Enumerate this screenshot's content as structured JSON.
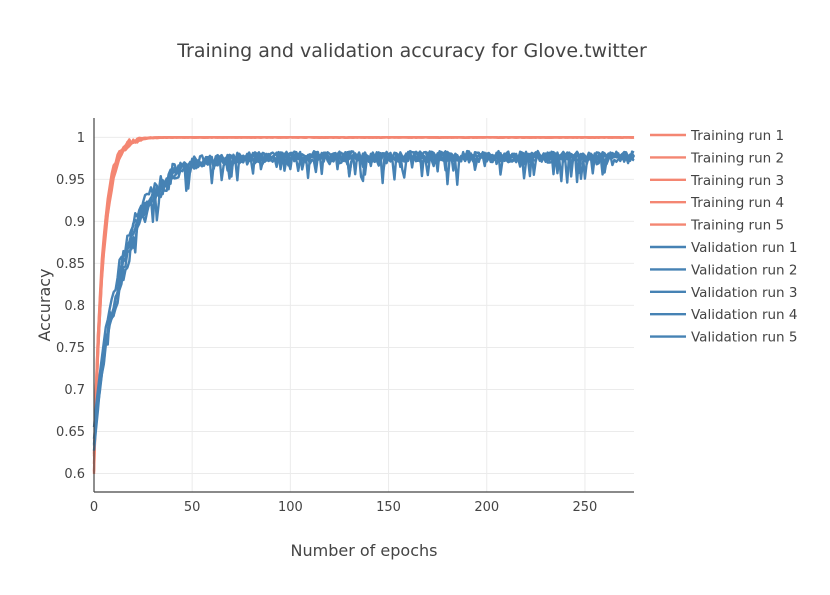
{
  "chart_data": {
    "type": "line",
    "title": "Training and validation accuracy for Glove.twitter",
    "xlabel": "Number of epochs",
    "ylabel": "Accuracy",
    "xlim": [
      0,
      275
    ],
    "ylim": [
      0.578,
      1.023
    ],
    "x_ticks": [
      0,
      50,
      100,
      150,
      200,
      250
    ],
    "y_ticks": [
      0.6,
      0.65,
      0.7,
      0.75,
      0.8,
      0.85,
      0.9,
      0.95,
      1
    ],
    "y_tick_labels": [
      "0.6",
      "0.65",
      "0.7",
      "0.75",
      "0.8",
      "0.85",
      "0.9",
      "0.95",
      "1"
    ],
    "x_tick_labels": [
      "0",
      "50",
      "100",
      "150",
      "200",
      "250"
    ],
    "grid": true,
    "legend_position": "right",
    "colors": {
      "training": "#f48672",
      "validation": "#4682b4"
    },
    "epochs": 275,
    "series": [
      {
        "name": "Training run 1",
        "group": "training",
        "start": 0.6,
        "plateau": 1.0,
        "rise_epochs": 20,
        "noise": 0.002,
        "seed": 11
      },
      {
        "name": "Training run 2",
        "group": "training",
        "start": 0.61,
        "plateau": 1.0,
        "rise_epochs": 22,
        "noise": 0.002,
        "seed": 12
      },
      {
        "name": "Training run 3",
        "group": "training",
        "start": 0.62,
        "plateau": 1.0,
        "rise_epochs": 19,
        "noise": 0.002,
        "seed": 13
      },
      {
        "name": "Training run 4",
        "group": "training",
        "start": 0.6,
        "plateau": 1.0,
        "rise_epochs": 21,
        "noise": 0.002,
        "seed": 14
      },
      {
        "name": "Training run 5",
        "group": "training",
        "start": 0.625,
        "plateau": 1.0,
        "rise_epochs": 20,
        "noise": 0.002,
        "seed": 15
      },
      {
        "name": "Validation run 1",
        "group": "validation",
        "start": 0.63,
        "plateau": 0.977,
        "rise_epochs": 60,
        "noise": 0.01,
        "seed": 21
      },
      {
        "name": "Validation run 2",
        "group": "validation",
        "start": 0.64,
        "plateau": 0.975,
        "rise_epochs": 65,
        "noise": 0.01,
        "seed": 22
      },
      {
        "name": "Validation run 3",
        "group": "validation",
        "start": 0.65,
        "plateau": 0.978,
        "rise_epochs": 58,
        "noise": 0.01,
        "seed": 23
      },
      {
        "name": "Validation run 4",
        "group": "validation",
        "start": 0.63,
        "plateau": 0.976,
        "rise_epochs": 62,
        "noise": 0.01,
        "seed": 24
      },
      {
        "name": "Validation run 5",
        "group": "validation",
        "start": 0.64,
        "plateau": 0.977,
        "rise_epochs": 60,
        "noise": 0.01,
        "seed": 25
      }
    ]
  }
}
